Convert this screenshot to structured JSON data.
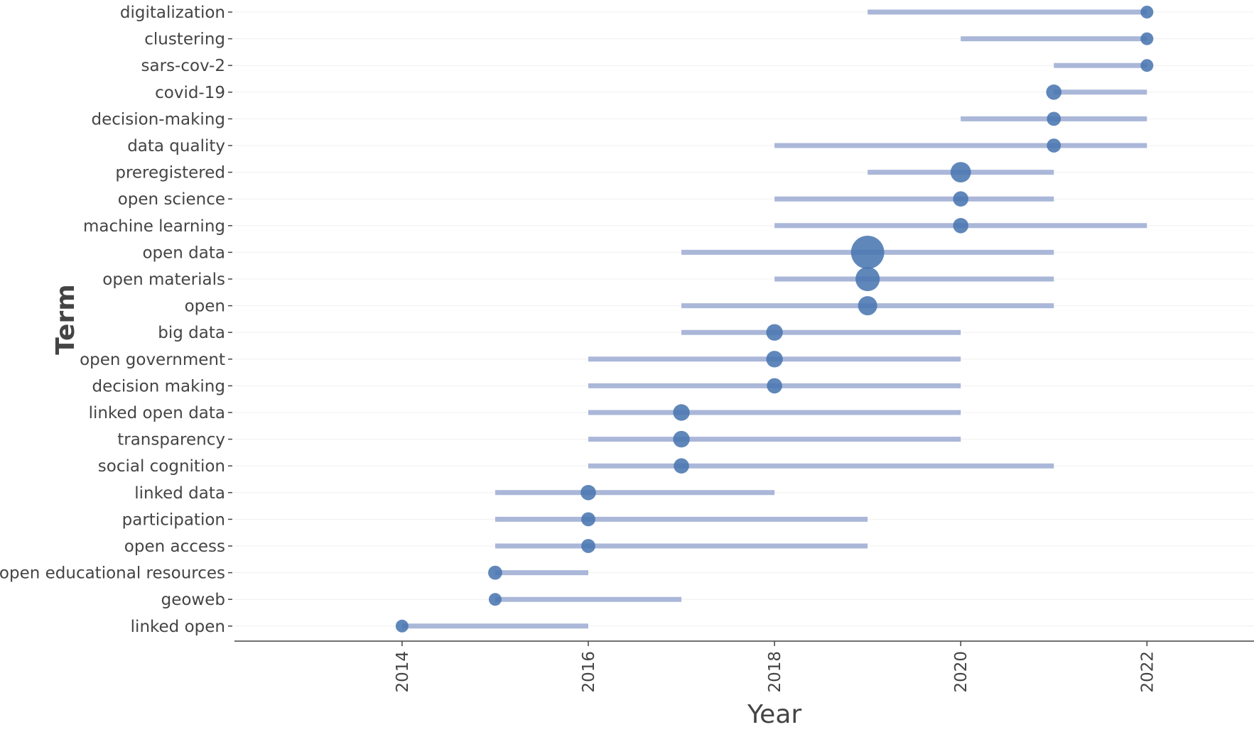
{
  "chart_data": {
    "type": "scatter",
    "xlabel": "Year",
    "ylabel": "Term",
    "xlim": [
      2012.2,
      2023.15
    ],
    "x_ticks": [
      "2014",
      "2016",
      "2018",
      "2020",
      "2022"
    ],
    "grid": "horizontal",
    "colors": {
      "point": "#4a76b0",
      "range": "#aab7d8",
      "axis": "#444444",
      "grid": "#f0f0f0"
    },
    "terms": [
      {
        "term": "digitalization",
        "start": 2019,
        "end": 2022,
        "peak": 2022,
        "size": 1.0
      },
      {
        "term": "clustering",
        "start": 2020,
        "end": 2022,
        "peak": 2022,
        "size": 1.0
      },
      {
        "term": "sars-cov-2",
        "start": 2021,
        "end": 2022,
        "peak": 2022,
        "size": 1.0
      },
      {
        "term": "covid-19",
        "start": 2021,
        "end": 2022,
        "peak": 2021,
        "size": 1.2
      },
      {
        "term": "decision-making",
        "start": 2020,
        "end": 2022,
        "peak": 2021,
        "size": 1.1
      },
      {
        "term": "data quality",
        "start": 2018,
        "end": 2022,
        "peak": 2021,
        "size": 1.1
      },
      {
        "term": "preregistered",
        "start": 2019,
        "end": 2021,
        "peak": 2020,
        "size": 1.6
      },
      {
        "term": "open science",
        "start": 2018,
        "end": 2021,
        "peak": 2020,
        "size": 1.2
      },
      {
        "term": "machine learning",
        "start": 2018,
        "end": 2022,
        "peak": 2020,
        "size": 1.2
      },
      {
        "term": "open data",
        "start": 2017,
        "end": 2021,
        "peak": 2019,
        "size": 2.6
      },
      {
        "term": "open materials",
        "start": 2018,
        "end": 2021,
        "peak": 2019,
        "size": 1.9
      },
      {
        "term": "open",
        "start": 2017,
        "end": 2021,
        "peak": 2019,
        "size": 1.5
      },
      {
        "term": "big data",
        "start": 2017,
        "end": 2020,
        "peak": 2018,
        "size": 1.3
      },
      {
        "term": "open government",
        "start": 2016,
        "end": 2020,
        "peak": 2018,
        "size": 1.3
      },
      {
        "term": "decision making",
        "start": 2016,
        "end": 2020,
        "peak": 2018,
        "size": 1.2
      },
      {
        "term": "linked open data",
        "start": 2016,
        "end": 2020,
        "peak": 2017,
        "size": 1.3
      },
      {
        "term": "transparency",
        "start": 2016,
        "end": 2020,
        "peak": 2017,
        "size": 1.3
      },
      {
        "term": "social cognition",
        "start": 2016,
        "end": 2021,
        "peak": 2017,
        "size": 1.2
      },
      {
        "term": "linked data",
        "start": 2015,
        "end": 2018,
        "peak": 2016,
        "size": 1.2
      },
      {
        "term": "participation",
        "start": 2015,
        "end": 2019,
        "peak": 2016,
        "size": 1.1
      },
      {
        "term": "open access",
        "start": 2015,
        "end": 2019,
        "peak": 2016,
        "size": 1.1
      },
      {
        "term": "open educational resources",
        "start": 2015,
        "end": 2016,
        "peak": 2015,
        "size": 1.1
      },
      {
        "term": "geoweb",
        "start": 2015,
        "end": 2017,
        "peak": 2015,
        "size": 1.0
      },
      {
        "term": "linked open",
        "start": 2014,
        "end": 2016,
        "peak": 2014,
        "size": 1.0
      }
    ]
  }
}
